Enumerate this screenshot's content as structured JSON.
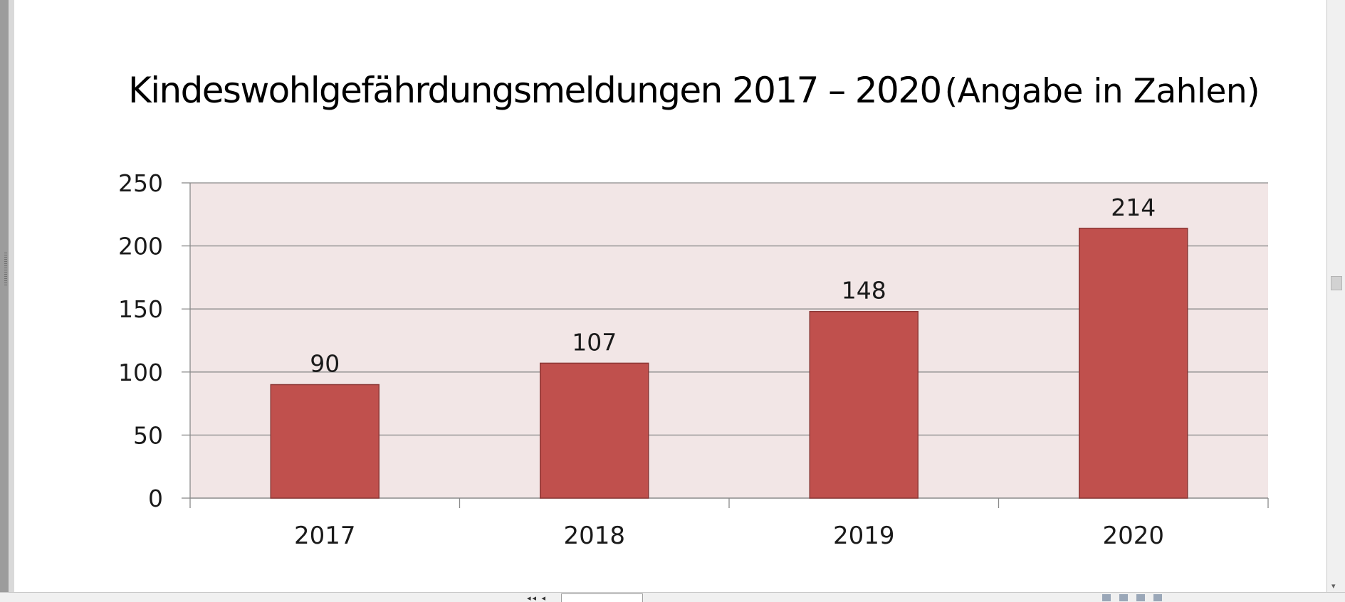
{
  "chart_data": {
    "type": "bar",
    "title": "Kindeswohlgefährdungsmeldungen 2017 – 2020",
    "subtitle": "(Angabe in Zahlen)",
    "categories": [
      "2017",
      "2018",
      "2019",
      "2020"
    ],
    "values": [
      90,
      107,
      148,
      214
    ],
    "data_labels": [
      "90",
      "107",
      "148",
      "214"
    ],
    "y_ticks": [
      0,
      50,
      100,
      150,
      200,
      250
    ],
    "ylim": [
      0,
      250
    ],
    "grid": true,
    "legend": "none",
    "colors": {
      "bar_fill": "#c0504d",
      "bar_stroke": "#8c3836",
      "plot_background": "#f2e6e6",
      "gridline": "#8a8a8a"
    }
  },
  "statusbar": {
    "nav_icon": "page-navigation-arrows",
    "view_icons": "view-mode-icons"
  }
}
